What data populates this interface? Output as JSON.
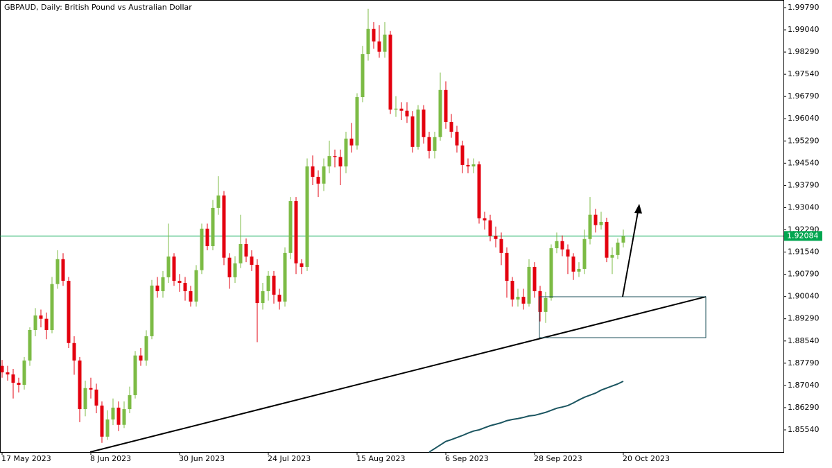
{
  "chart_data": {
    "type": "candlestick",
    "title": "GBPAUD, Daily:  British Pound vs Australian Dollar",
    "up_color": "#7cbb45",
    "down_color": "#e3000f",
    "ylim": [
      1.84791,
      2.00047
    ],
    "yticks": [
      {
        "value": 1.9979,
        "label": "1.99790"
      },
      {
        "value": 1.9904,
        "label": "1.99040"
      },
      {
        "value": 1.9829,
        "label": "1.98290"
      },
      {
        "value": 1.9754,
        "label": "1.97540"
      },
      {
        "value": 1.9679,
        "label": "1.96790"
      },
      {
        "value": 1.9604,
        "label": "1.96040"
      },
      {
        "value": 1.9529,
        "label": "1.95290"
      },
      {
        "value": 1.9454,
        "label": "1.94540"
      },
      {
        "value": 1.9379,
        "label": "1.93790"
      },
      {
        "value": 1.9304,
        "label": "1.93040"
      },
      {
        "value": 1.9229,
        "label": "1.92290"
      },
      {
        "value": 1.9154,
        "label": "1.91540"
      },
      {
        "value": 1.9079,
        "label": "1.90790"
      },
      {
        "value": 1.9004,
        "label": "1.90040"
      },
      {
        "value": 1.8929,
        "label": "1.89290"
      },
      {
        "value": 1.8854,
        "label": "1.88540"
      },
      {
        "value": 1.8779,
        "label": "1.87790"
      },
      {
        "value": 1.8704,
        "label": "1.87040"
      },
      {
        "value": 1.8629,
        "label": "1.86290"
      },
      {
        "value": 1.8554,
        "label": "1.85540"
      }
    ],
    "current_price": {
      "value": 1.92084,
      "color": "#00a650"
    },
    "categories": [
      "17 May 2023",
      null,
      null,
      null,
      null,
      null,
      null,
      null,
      null,
      null,
      null,
      null,
      null,
      null,
      null,
      null,
      "8 Jun 2023",
      null,
      null,
      null,
      null,
      null,
      null,
      null,
      null,
      null,
      null,
      null,
      null,
      null,
      null,
      null,
      "30 Jun 2023",
      null,
      null,
      null,
      null,
      null,
      null,
      null,
      null,
      null,
      null,
      null,
      null,
      null,
      null,
      null,
      "24 Jul 2023",
      null,
      null,
      null,
      null,
      null,
      null,
      null,
      null,
      null,
      null,
      null,
      null,
      null,
      null,
      null,
      "15 Aug 2023",
      null,
      null,
      null,
      null,
      null,
      null,
      null,
      null,
      null,
      null,
      null,
      null,
      null,
      null,
      null,
      "6 Sep 2023",
      null,
      null,
      null,
      null,
      null,
      null,
      null,
      null,
      null,
      null,
      null,
      null,
      null,
      null,
      null,
      "28 Sep 2023",
      null,
      null,
      null,
      null,
      null,
      null,
      null,
      null,
      null,
      null,
      null,
      null,
      null,
      null,
      null,
      "20 Oct 2023"
    ],
    "open": [
      1.877,
      1.8748,
      1.8741,
      1.8713,
      1.8706,
      1.8788,
      1.8891,
      1.894,
      1.8929,
      1.8891,
      1.9046,
      1.913,
      1.9057,
      1.8847,
      1.8788,
      1.8624,
      1.8695,
      1.869,
      1.8636,
      1.8531,
      1.8589,
      1.8629,
      1.8571,
      1.8624,
      1.8671,
      1.8805,
      1.8788,
      1.887,
      1.9041,
      1.9022,
      1.9069,
      1.9139,
      1.9057,
      1.905,
      1.9022,
      1.8987,
      1.9093,
      1.9233,
      1.9174,
      1.9303,
      1.9345,
      1.9135,
      1.9069,
      1.9116,
      1.9181,
      1.9139,
      1.9111,
      1.8982,
      1.9022,
      1.9074,
      1.901,
      1.8987,
      1.9151,
      1.9326,
      1.9116,
      1.9104,
      1.9443,
      1.9408,
      1.9385,
      1.9443,
      1.9478,
      1.9475,
      1.9443,
      1.9537,
      1.9514,
      1.9677,
      1.9822,
      1.9907,
      1.9865,
      1.983,
      1.9888,
      1.9635,
      1.9638,
      1.9631,
      1.9612,
      1.9509,
      1.9635,
      1.9542,
      1.9495,
      1.9542,
      1.9701,
      1.9593,
      1.956,
      1.9514,
      1.9448,
      1.9443,
      1.945,
      1.9268,
      1.9261,
      1.9209,
      1.9198,
      1.9151,
      1.9057,
      1.8994,
      1.9003,
      1.898,
      1.9104,
      1.9022,
      1.8952,
      1.8999,
      1.9167,
      1.9191,
      1.9163,
      1.9139,
      1.9088,
      1.9097,
      1.9198,
      1.928,
      1.9245,
      1.9256,
      1.9135,
      1.9144,
      1.9186
    ],
    "high": [
      1.879,
      1.877,
      1.876,
      1.873,
      1.88,
      1.89,
      1.8965,
      1.896,
      1.895,
      1.907,
      1.916,
      1.915,
      1.907,
      1.887,
      1.88,
      1.872,
      1.873,
      1.871,
      1.865,
      1.862,
      1.866,
      1.865,
      1.865,
      1.87,
      1.882,
      1.883,
      1.889,
      1.906,
      1.907,
      1.909,
      1.925,
      1.915,
      1.908,
      1.907,
      1.904,
      1.911,
      1.925,
      1.925,
      1.933,
      1.941,
      1.936,
      1.915,
      1.914,
      1.928,
      1.92,
      1.916,
      1.913,
      1.905,
      1.909,
      1.909,
      1.903,
      1.917,
      1.934,
      1.934,
      1.913,
      1.947,
      1.948,
      1.943,
      1.947,
      1.953,
      1.95,
      1.95,
      1.956,
      1.959,
      1.969,
      1.985,
      1.9975,
      1.993,
      1.992,
      1.993,
      1.99,
      1.968,
      1.966,
      1.966,
      1.963,
      1.965,
      1.965,
      1.956,
      1.956,
      1.976,
      1.973,
      1.962,
      1.958,
      1.953,
      1.947,
      1.947,
      1.946,
      1.929,
      1.928,
      1.924,
      1.922,
      1.917,
      1.907,
      1.903,
      1.903,
      1.913,
      1.912,
      1.904,
      1.902,
      1.918,
      1.922,
      1.921,
      1.918,
      1.915,
      1.912,
      1.923,
      1.934,
      1.93,
      1.929,
      1.927,
      1.917,
      1.92,
      1.923
    ],
    "low": [
      1.873,
      1.872,
      1.866,
      1.868,
      1.869,
      1.877,
      1.887,
      1.89,
      1.886,
      1.888,
      1.903,
      1.904,
      1.883,
      1.874,
      1.858,
      1.86,
      1.866,
      1.861,
      1.851,
      1.852,
      1.857,
      1.855,
      1.856,
      1.861,
      1.866,
      1.877,
      1.877,
      1.886,
      1.9,
      1.9,
      1.905,
      1.904,
      1.902,
      1.899,
      1.897,
      1.897,
      1.908,
      1.916,
      1.916,
      1.928,
      1.911,
      1.903,
      1.905,
      1.91,
      1.912,
      1.909,
      1.885,
      1.896,
      1.899,
      1.898,
      1.896,
      1.897,
      1.913,
      1.908,
      1.908,
      1.909,
      1.938,
      1.934,
      1.936,
      1.942,
      1.944,
      1.938,
      1.942,
      1.949,
      1.95,
      1.966,
      1.98,
      1.984,
      1.981,
      1.981,
      1.962,
      1.961,
      1.96,
      1.959,
      1.949,
      1.95,
      1.952,
      1.947,
      1.947,
      1.953,
      1.957,
      1.954,
      1.949,
      1.942,
      1.942,
      1.942,
      1.925,
      1.923,
      1.919,
      1.917,
      1.911,
      1.9,
      1.897,
      1.897,
      1.896,
      1.897,
      1.9,
      1.892,
      1.8915,
      1.899,
      1.915,
      1.914,
      1.908,
      1.906,
      1.907,
      1.908,
      1.918,
      1.922,
      1.923,
      1.912,
      1.908,
      1.913,
      1.917
    ],
    "close": [
      1.8748,
      1.8741,
      1.8713,
      1.8706,
      1.8788,
      1.8891,
      1.894,
      1.8929,
      1.8891,
      1.9046,
      1.913,
      1.9057,
      1.8847,
      1.8788,
      1.8624,
      1.8695,
      1.869,
      1.8636,
      1.8531,
      1.8589,
      1.8629,
      1.8571,
      1.8624,
      1.8671,
      1.8805,
      1.8788,
      1.887,
      1.9041,
      1.9022,
      1.9069,
      1.9139,
      1.9057,
      1.905,
      1.9022,
      1.8987,
      1.9093,
      1.9233,
      1.9174,
      1.9303,
      1.9345,
      1.9135,
      1.9069,
      1.9116,
      1.9181,
      1.9139,
      1.9111,
      1.8982,
      1.9022,
      1.9074,
      1.901,
      1.8987,
      1.9151,
      1.9326,
      1.9116,
      1.9104,
      1.9443,
      1.9408,
      1.9385,
      1.9443,
      1.9478,
      1.9475,
      1.9443,
      1.9537,
      1.9514,
      1.9677,
      1.9822,
      1.9907,
      1.9865,
      1.983,
      1.9888,
      1.9635,
      1.9638,
      1.9631,
      1.9612,
      1.9509,
      1.9635,
      1.9542,
      1.9495,
      1.9542,
      1.9701,
      1.9593,
      1.956,
      1.9514,
      1.9448,
      1.9443,
      1.945,
      1.9268,
      1.9261,
      1.9209,
      1.9198,
      1.9151,
      1.9057,
      1.8994,
      1.9003,
      1.898,
      1.9104,
      1.9022,
      1.8952,
      1.8999,
      1.9167,
      1.9191,
      1.9163,
      1.9139,
      1.9088,
      1.9097,
      1.9198,
      1.928,
      1.9245,
      1.9256,
      1.9135,
      1.9144,
      1.9186,
      1.9208
    ],
    "moving_average": {
      "color": "#1b5560",
      "values": [
        null,
        null,
        null,
        null,
        null,
        null,
        null,
        null,
        null,
        null,
        null,
        null,
        null,
        null,
        null,
        null,
        null,
        null,
        null,
        null,
        null,
        null,
        null,
        null,
        null,
        null,
        null,
        null,
        null,
        null,
        null,
        null,
        null,
        null,
        null,
        null,
        null,
        null,
        null,
        null,
        null,
        null,
        null,
        null,
        null,
        null,
        null,
        null,
        null,
        null,
        null,
        null,
        null,
        null,
        null,
        null,
        null,
        null,
        null,
        null,
        null,
        null,
        null,
        null,
        null,
        null,
        null,
        null,
        null,
        null,
        null,
        null,
        null,
        null,
        null,
        null,
        null,
        1.8479,
        1.8491,
        1.8503,
        1.8515,
        1.8521,
        1.8528,
        1.8535,
        1.8543,
        1.855,
        1.8554,
        1.8561,
        1.8568,
        1.8573,
        1.8578,
        1.8585,
        1.8589,
        1.8592,
        1.8596,
        1.8601,
        1.8603,
        1.8608,
        1.8613,
        1.862,
        1.8627,
        1.8631,
        1.8636,
        1.8645,
        1.8655,
        1.8664,
        1.8671,
        1.8678,
        1.8688,
        1.8695,
        1.8702,
        1.8709,
        1.8718
      ]
    }
  }
}
